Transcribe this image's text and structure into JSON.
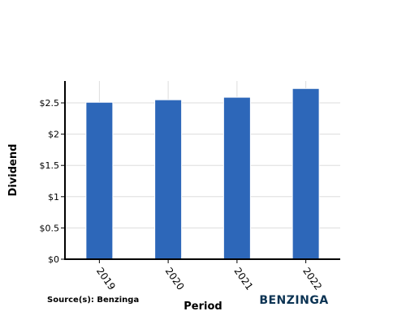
{
  "chart_data": {
    "type": "bar",
    "categories": [
      "2019",
      "2020",
      "2021",
      "2022"
    ],
    "values": [
      2.51,
      2.55,
      2.59,
      2.73
    ],
    "title": "",
    "xlabel": "Period",
    "ylabel": "Dividend",
    "ylim": [
      0,
      2.85
    ],
    "yticks": [
      0,
      0.5,
      1,
      1.5,
      2,
      2.5
    ],
    "ytick_labels": [
      "$0",
      "$0.5",
      "$1",
      "$1.5",
      "$2",
      "$2.5"
    ],
    "grid": true,
    "bar_color": "#2d67b9"
  },
  "source": "Source(s): Benzinga",
  "brand": "BENZINGA",
  "brand_color": "#0b3353"
}
